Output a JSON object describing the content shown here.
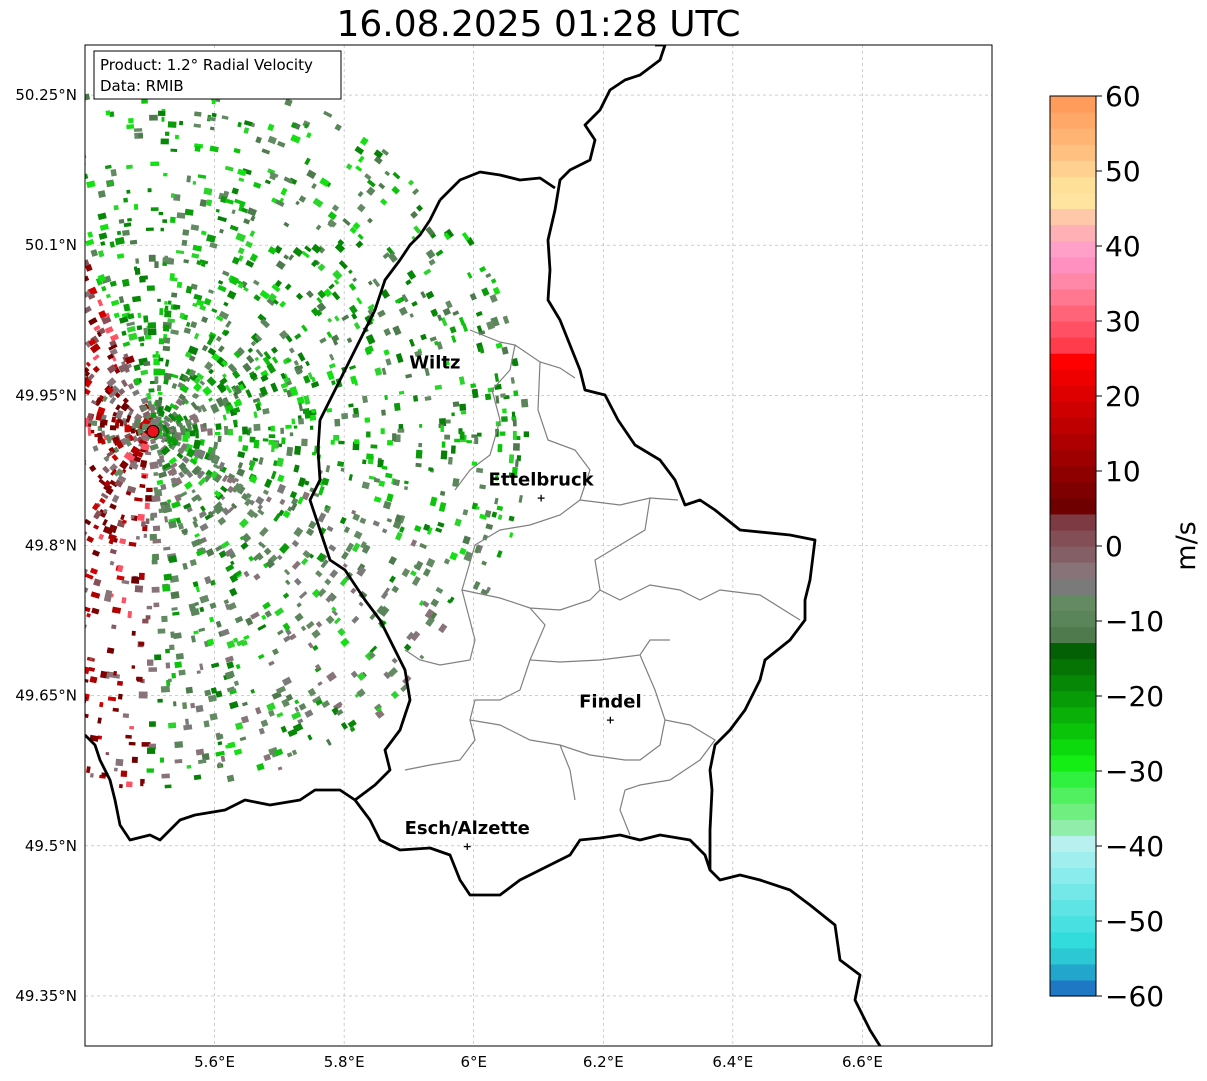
{
  "title": "16.08.2025 01:28 UTC",
  "info_box": {
    "product": "Product: 1.2° Radial Velocity",
    "data": "Data: RMIB"
  },
  "map": {
    "extent": {
      "lon": [
        5.4,
        6.8
      ],
      "lat": [
        49.3,
        50.3
      ]
    },
    "lat_ticks": [
      {
        "value": 49.35,
        "label": "49.35°N"
      },
      {
        "value": 49.5,
        "label": "49.5°N"
      },
      {
        "value": 49.65,
        "label": "49.65°N"
      },
      {
        "value": 49.8,
        "label": "49.8°N"
      },
      {
        "value": 49.95,
        "label": "49.95°N"
      },
      {
        "value": 50.1,
        "label": "50.1°N"
      },
      {
        "value": 50.25,
        "label": "50.25°N"
      }
    ],
    "lon_ticks": [
      {
        "value": 5.6,
        "label": "5.6°E"
      },
      {
        "value": 5.8,
        "label": "5.8°E"
      },
      {
        "value": 6.0,
        "label": "6°E"
      },
      {
        "value": 6.2,
        "label": "6.2°E"
      },
      {
        "value": 6.4,
        "label": "6.4°E"
      },
      {
        "value": 6.6,
        "label": "6.6°E"
      }
    ],
    "grid": true,
    "radar_site": {
      "lon": 5.505,
      "lat": 49.914
    },
    "cities": [
      {
        "name": "Wiltz",
        "lon": 5.94,
        "lat": 49.965,
        "marker": false
      },
      {
        "name": "Ettelbruck",
        "lon": 6.104,
        "lat": 49.848,
        "marker": true
      },
      {
        "name": "Findel",
        "lon": 6.211,
        "lat": 49.626,
        "marker": true
      },
      {
        "name": "Esch/Alzette",
        "lon": 5.99,
        "lat": 49.5,
        "marker": true
      }
    ]
  },
  "colorbar": {
    "label": "m/s",
    "min": -60,
    "max": 60,
    "ticks": [
      {
        "value": 60,
        "label": "60"
      },
      {
        "value": 50,
        "label": "50"
      },
      {
        "value": 40,
        "label": "40"
      },
      {
        "value": 30,
        "label": "30"
      },
      {
        "value": 20,
        "label": "20"
      },
      {
        "value": 10,
        "label": "10"
      },
      {
        "value": 0,
        "label": "0"
      },
      {
        "value": -10,
        "label": "−10"
      },
      {
        "value": -20,
        "label": "−20"
      },
      {
        "value": -30,
        "label": "−30"
      },
      {
        "value": -40,
        "label": "−40"
      },
      {
        "value": -50,
        "label": "−50"
      },
      {
        "value": -60,
        "label": "−60"
      }
    ],
    "colors": [
      "#1f78c4",
      "#23a6cc",
      "#2cc8d4",
      "#33dcdc",
      "#48e0e0",
      "#5ee4e4",
      "#74e8e8",
      "#8aecec",
      "#a0eeee",
      "#b8f0f0",
      "#90eeaa",
      "#70ee80",
      "#50f060",
      "#30f040",
      "#14ee14",
      "#0cda0c",
      "#0ac40a",
      "#08b008",
      "#079c07",
      "#068806",
      "#057405",
      "#046004",
      "#4e7a4e",
      "#5a845a",
      "#648a64",
      "#7a7a7a",
      "#887478",
      "#846066",
      "#844e56",
      "#7e3a42",
      "#6e0000",
      "#7e0000",
      "#8e0000",
      "#9e0000",
      "#ae0000",
      "#be0000",
      "#ce0000",
      "#de0000",
      "#ee0000",
      "#fe0000",
      "#ff3c4c",
      "#ff5064",
      "#ff6478",
      "#ff7890",
      "#ff88a8",
      "#ff90c0",
      "#ffa0c8",
      "#ffb0b4",
      "#ffc8a8",
      "#ffe4a0",
      "#ffe098",
      "#ffd090",
      "#ffc080",
      "#ffb474",
      "#ffa868",
      "#ff9c5c"
    ]
  },
  "colors": {
    "country_border": "#000000",
    "canton_border": "#808080",
    "radar_dot": "#e8141c",
    "grid": "#b0b0b0"
  }
}
